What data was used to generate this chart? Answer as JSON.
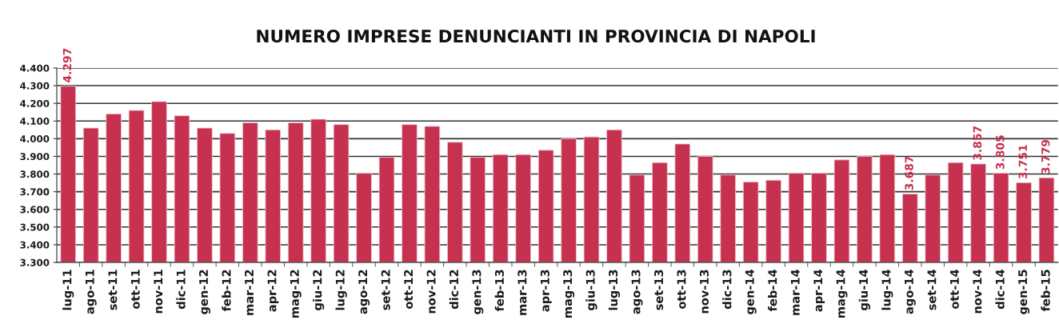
{
  "chart_data": {
    "type": "bar",
    "title": "NUMERO IMPRESE DENUNCIANTI IN PROVINCIA DI NAPOLI",
    "categories": [
      "lug-11",
      "ago-11",
      "set-11",
      "ott-11",
      "nov-11",
      "dic-11",
      "gen-12",
      "feb-12",
      "mar-12",
      "apr-12",
      "mag-12",
      "giu-12",
      "lug-12",
      "ago-12",
      "set-12",
      "ott-12",
      "nov-12",
      "dic-12",
      "gen-13",
      "feb-13",
      "mar-13",
      "apr-13",
      "mag-13",
      "giu-13",
      "lug-13",
      "ago-13",
      "set-13",
      "ott-13",
      "nov-13",
      "dic-13",
      "gen-14",
      "feb-14",
      "mar-14",
      "apr-14",
      "mag-14",
      "giu-14",
      "lug-14",
      "ago-14",
      "set-14",
      "ott-14",
      "nov-14",
      "dic-14",
      "gen-15",
      "feb-15"
    ],
    "values": [
      4297,
      4060,
      4140,
      4160,
      4210,
      4130,
      4060,
      4030,
      4090,
      4050,
      4090,
      4110,
      4080,
      3805,
      3895,
      4080,
      4070,
      3980,
      3895,
      3910,
      3910,
      3935,
      4000,
      4010,
      4050,
      3795,
      3865,
      3970,
      3900,
      3795,
      3755,
      3765,
      3805,
      3805,
      3880,
      3900,
      3910,
      3687,
      3795,
      3865,
      3857,
      3805,
      3751,
      3779
    ],
    "color": "#c5314f",
    "value_labels": [
      "4.297",
      null,
      null,
      null,
      null,
      null,
      null,
      null,
      null,
      null,
      null,
      null,
      null,
      null,
      null,
      null,
      null,
      null,
      null,
      null,
      null,
      null,
      null,
      null,
      null,
      null,
      null,
      null,
      null,
      null,
      null,
      null,
      null,
      null,
      null,
      null,
      null,
      "3.687",
      null,
      null,
      "3.857",
      "3.805",
      "3.751",
      "3.779"
    ],
    "ylim": [
      3300,
      4400
    ],
    "yticks": [
      {
        "value": 3300,
        "label": "3.300"
      },
      {
        "value": 3400,
        "label": "3.400"
      },
      {
        "value": 3500,
        "label": "3.500"
      },
      {
        "value": 3600,
        "label": "3.600"
      },
      {
        "value": 3700,
        "label": "3.700"
      },
      {
        "value": 3800,
        "label": "3.800"
      },
      {
        "value": 3900,
        "label": "3.900"
      },
      {
        "value": 4000,
        "label": "4.000"
      },
      {
        "value": 4100,
        "label": "4.100"
      },
      {
        "value": 4200,
        "label": "4.200"
      },
      {
        "value": 4300,
        "label": "4.300"
      },
      {
        "value": 4400,
        "label": "4.400"
      }
    ],
    "grid": "y"
  }
}
